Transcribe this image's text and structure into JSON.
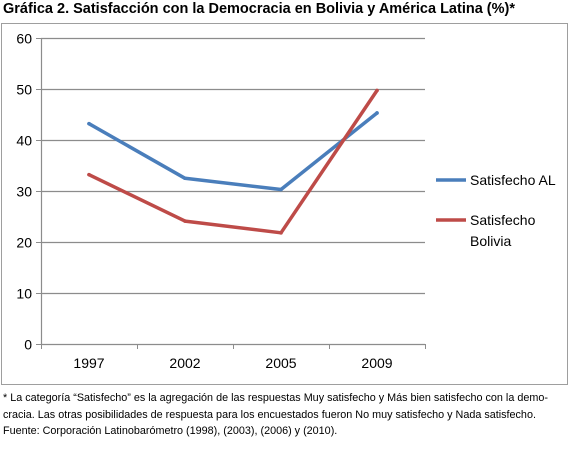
{
  "title": "Gráfica 2. Satisfacción con la Democracia en Bolivia y América Latina (%)*",
  "chart_data": {
    "type": "line",
    "title": "",
    "xlabel": "",
    "ylabel": "",
    "categories": [
      "1997",
      "2002",
      "2005",
      "2009"
    ],
    "ylim": [
      0,
      60
    ],
    "yticks": [
      0,
      10,
      20,
      30,
      40,
      50,
      60
    ],
    "grid": true,
    "legend_position": "right",
    "series": [
      {
        "name": "Satisfecho AL",
        "color": "#4a7ebb",
        "values": [
          43.2,
          32.5,
          30.3,
          45.3
        ]
      },
      {
        "name": "Satisfecho Bolivia",
        "color": "#be4b48",
        "values": [
          33.2,
          24.1,
          21.8,
          49.7
        ]
      }
    ]
  },
  "footnote": {
    "line1": "* La categoría “Satisfecho” es la agregación de las respuestas Muy satisfecho y Más bien satisfecho con la demo-",
    "line2": "cracia. Las otras posibilidades de respuesta para los encuestados fueron No muy satisfecho y Nada satisfecho.",
    "line3": "Fuente: Corporación Latinobarómetro (1998), (2003), (2006) y (2010)."
  }
}
